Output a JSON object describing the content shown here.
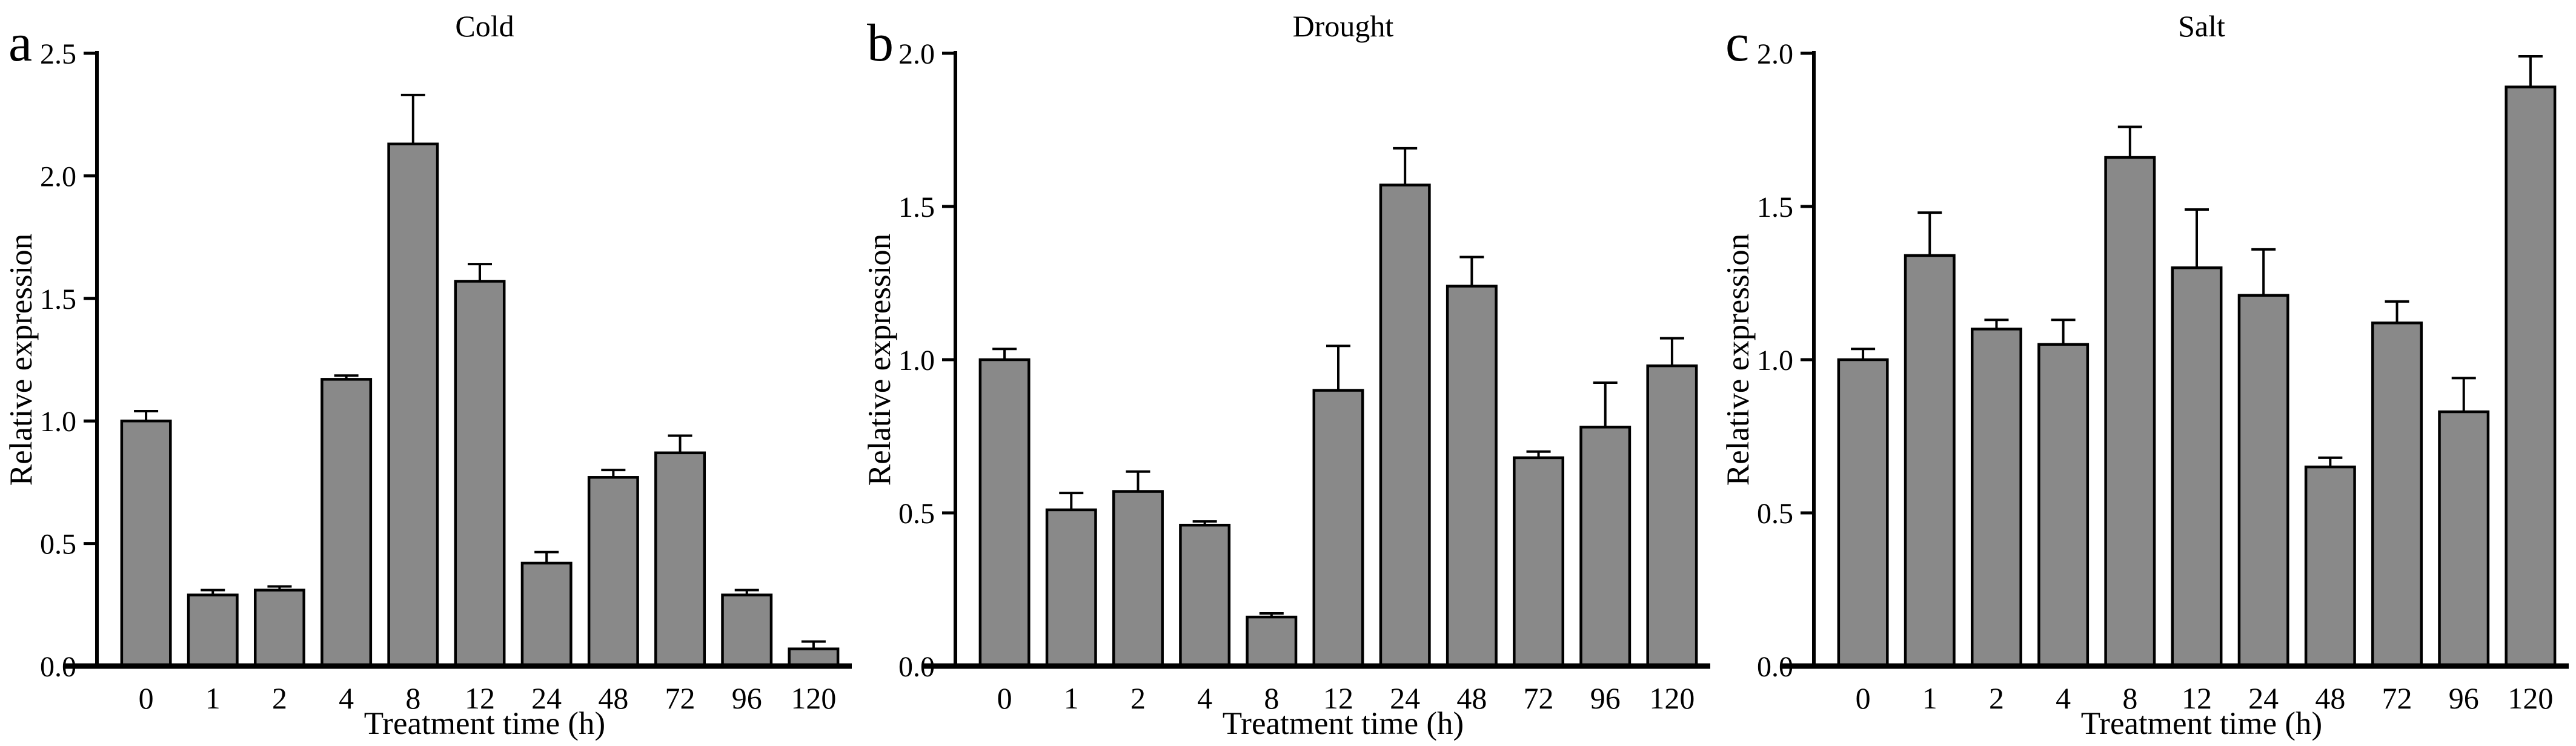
{
  "colors": {
    "bar_fill": "#898989",
    "bar_stroke": "#000000",
    "axis": "#000000",
    "background": "#ffffff"
  },
  "chart_data": [
    {
      "type": "bar",
      "panel_letter": "a",
      "title": "Cold",
      "xlabel": "Treatment time (h)",
      "ylabel": "Relative expression",
      "categories": [
        "0",
        "1",
        "2",
        "4",
        "8",
        "12",
        "24",
        "48",
        "72",
        "96",
        "120"
      ],
      "values": [
        1.0,
        0.29,
        0.31,
        1.17,
        2.13,
        1.57,
        0.42,
        0.77,
        0.87,
        0.29,
        0.07
      ],
      "errors": [
        0.04,
        0.02,
        0.015,
        0.015,
        0.2,
        0.07,
        0.045,
        0.03,
        0.07,
        0.02,
        0.03
      ],
      "ylim": [
        0,
        2.5
      ],
      "yticks": [
        "0.0",
        "0.5",
        "1.0",
        "1.5",
        "2.0",
        "2.5"
      ],
      "grid": false,
      "legend": "none"
    },
    {
      "type": "bar",
      "panel_letter": "b",
      "title": "Drought",
      "xlabel": "Treatment time (h)",
      "ylabel": "Relative expression",
      "categories": [
        "0",
        "1",
        "2",
        "4",
        "8",
        "12",
        "24",
        "48",
        "72",
        "96",
        "120"
      ],
      "values": [
        1.0,
        0.51,
        0.57,
        0.46,
        0.16,
        0.9,
        1.57,
        1.24,
        0.68,
        0.78,
        0.98
      ],
      "errors": [
        0.035,
        0.055,
        0.065,
        0.012,
        0.012,
        0.145,
        0.12,
        0.095,
        0.02,
        0.145,
        0.09
      ],
      "ylim": [
        0,
        2.0
      ],
      "yticks": [
        "0.0",
        "0.5",
        "1.0",
        "1.5",
        "2.0"
      ],
      "grid": false,
      "legend": "none"
    },
    {
      "type": "bar",
      "panel_letter": "c",
      "title": "Salt",
      "xlabel": "Treatment time (h)",
      "ylabel": "Relative expression",
      "categories": [
        "0",
        "1",
        "2",
        "4",
        "8",
        "12",
        "24",
        "48",
        "72",
        "96",
        "120"
      ],
      "values": [
        1.0,
        1.34,
        1.1,
        1.05,
        1.66,
        1.3,
        1.21,
        0.65,
        1.12,
        0.83,
        1.89
      ],
      "errors": [
        0.035,
        0.14,
        0.03,
        0.08,
        0.1,
        0.19,
        0.15,
        0.03,
        0.07,
        0.11,
        0.1
      ],
      "ylim": [
        0,
        2.0
      ],
      "yticks": [
        "0.0",
        "0.5",
        "1.0",
        "1.5",
        "2.0"
      ],
      "grid": false,
      "legend": "none"
    }
  ]
}
